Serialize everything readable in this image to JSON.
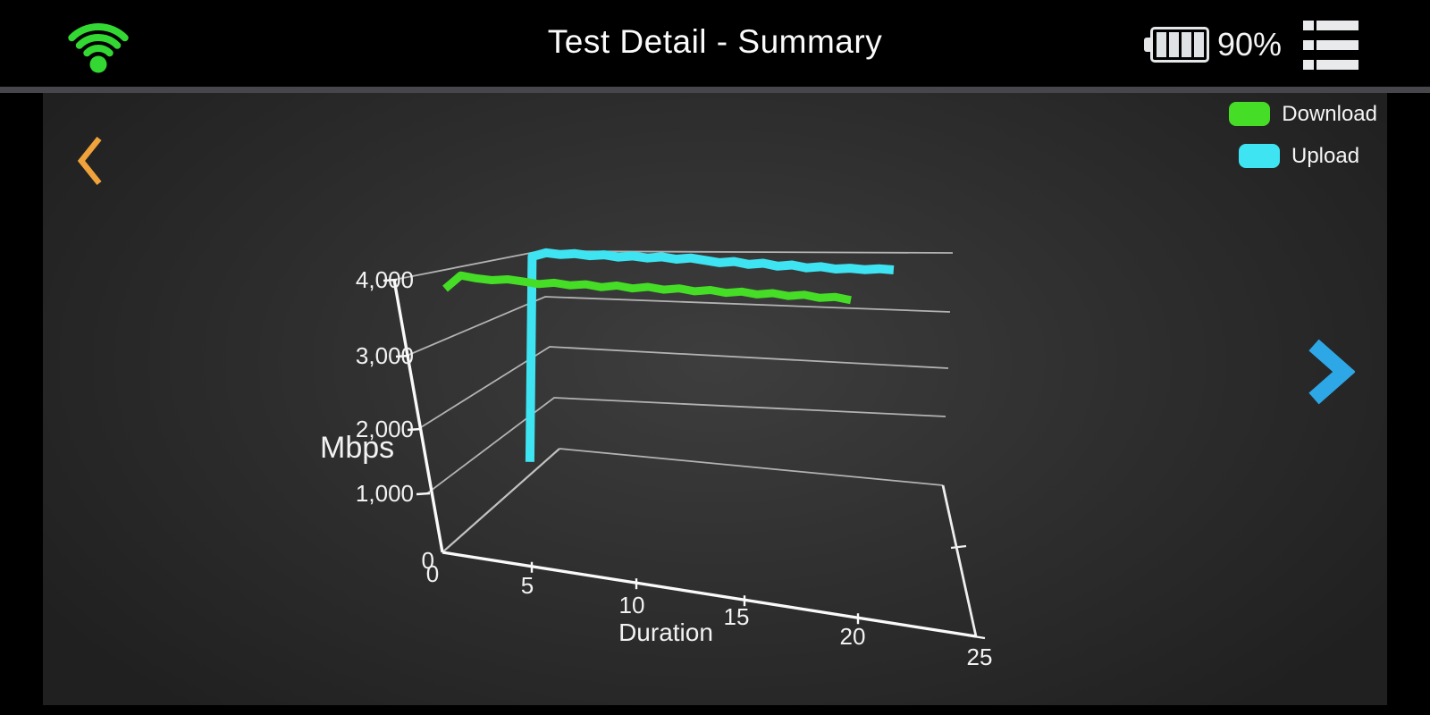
{
  "header": {
    "title": "Test Detail - Summary",
    "battery_percent": "90%",
    "wifi_icon": "wifi-signal-connected",
    "battery_icon": "battery-full-4-bars",
    "menu_icon": "list-menu"
  },
  "nav": {
    "prev_icon": "chevron-left",
    "next_icon": "chevron-right"
  },
  "legend": {
    "items": [
      {
        "label": "Download",
        "color": "#45DD26"
      },
      {
        "label": "Upload",
        "color": "#3EE4F2"
      }
    ]
  },
  "chart_data": {
    "type": "line",
    "projection": "3d",
    "title": "",
    "xlabel": "Duration",
    "ylabel": "Mbps",
    "xlim": [
      0,
      25
    ],
    "ylim": [
      0,
      4000
    ],
    "x_ticks": [
      0,
      5,
      10,
      15,
      20,
      25
    ],
    "x_tick_labels": [
      "0",
      "5",
      "10",
      "15",
      "20",
      "25"
    ],
    "y_ticks": [
      0,
      1000,
      2000,
      3000,
      4000
    ],
    "y_tick_labels": [
      "0",
      "1,000",
      "2,000",
      "3,000",
      "4,000"
    ],
    "grid": true,
    "legend_position": "top-right",
    "series": [
      {
        "name": "Download",
        "color": "#45DD26",
        "x": [
          1,
          1.71,
          2.42,
          3.13,
          3.85,
          4.56,
          5.27,
          5.98,
          6.69,
          7.4,
          8.12,
          8.83,
          9.54,
          10.25,
          10.96,
          11.67,
          12.38,
          13.1,
          13.81,
          14.52,
          15.23,
          15.94,
          16.65,
          17.37,
          18.08,
          18.79,
          19.5
        ],
        "values": [
          3795,
          4005,
          3960,
          3930,
          3945,
          3910,
          3870,
          3890,
          3850,
          3865,
          3820,
          3845,
          3800,
          3825,
          3780,
          3800,
          3755,
          3775,
          3730,
          3750,
          3705,
          3725,
          3680,
          3700,
          3650,
          3665,
          3615
        ]
      },
      {
        "name": "Upload",
        "color": "#3EE4F2",
        "x": [
          3.1,
          3.2,
          3.85,
          4.52,
          5.19,
          5.87,
          6.54,
          7.21,
          7.88,
          8.56,
          9.23,
          9.9,
          10.57,
          11.25,
          11.92,
          12.59,
          13.26,
          13.94,
          14.61,
          15.28,
          15.95,
          16.63,
          17.3,
          17.97,
          18.64,
          19.32,
          20
        ],
        "values": [
          630,
          4165,
          4230,
          4200,
          4215,
          4180,
          4195,
          4155,
          4175,
          4140,
          4160,
          4120,
          4140,
          4100,
          4060,
          4080,
          4030,
          4050,
          4000,
          4020,
          3970,
          3990,
          3950,
          3965,
          3940,
          3955,
          3935
        ]
      }
    ]
  },
  "colors": {
    "wifi_green": "#33D833",
    "prev_orange": "#F1A33B",
    "next_blue": "#2EA7E6",
    "axis_white": "#fafafa",
    "grid_gray": "#c9c9c9",
    "text_white": "#f2f2f2"
  }
}
